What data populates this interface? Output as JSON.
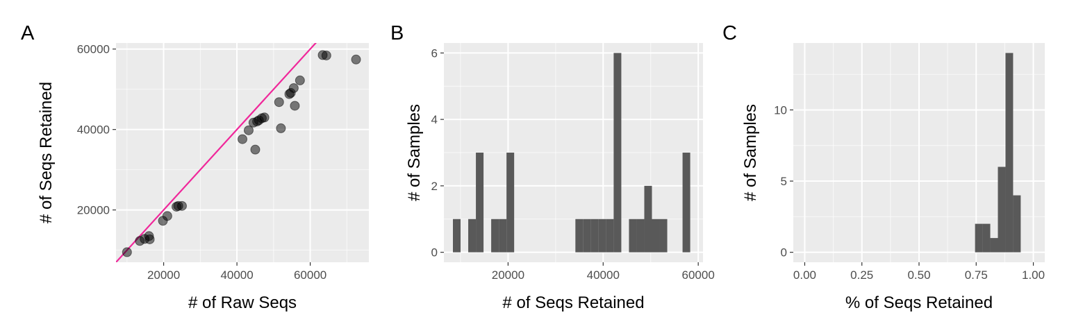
{
  "style": {
    "panel_bg": "#ebebeb",
    "grid_major": "#ffffff",
    "bar_fill": "#595959",
    "point_fill": "#000000",
    "line_color": "#f0279a",
    "tick_color": "#333333"
  },
  "chart_data": [
    {
      "type": "scatter",
      "tag": "A",
      "xlabel": "# of Raw Seqs",
      "ylabel": "# of Seqs Retained",
      "xlim": [
        7000,
        76000
      ],
      "ylim": [
        7000,
        61500
      ],
      "xticks": [
        20000,
        40000,
        60000
      ],
      "yticks": [
        20000,
        40000,
        60000
      ],
      "reference_line": {
        "slope": 1,
        "intercept": 0
      },
      "points": [
        {
          "x": 10000,
          "y": 9500
        },
        {
          "x": 13500,
          "y": 12300
        },
        {
          "x": 14800,
          "y": 12800
        },
        {
          "x": 16000,
          "y": 13500
        },
        {
          "x": 16200,
          "y": 12700
        },
        {
          "x": 19800,
          "y": 17300
        },
        {
          "x": 21000,
          "y": 18500
        },
        {
          "x": 23500,
          "y": 20800
        },
        {
          "x": 24000,
          "y": 21000
        },
        {
          "x": 25000,
          "y": 21000
        },
        {
          "x": 41500,
          "y": 37600
        },
        {
          "x": 43200,
          "y": 39800
        },
        {
          "x": 44500,
          "y": 41700
        },
        {
          "x": 45000,
          "y": 35000
        },
        {
          "x": 45500,
          "y": 42000
        },
        {
          "x": 46000,
          "y": 42300
        },
        {
          "x": 46800,
          "y": 42800
        },
        {
          "x": 47500,
          "y": 43000
        },
        {
          "x": 51500,
          "y": 46800
        },
        {
          "x": 52000,
          "y": 40300
        },
        {
          "x": 54300,
          "y": 48800
        },
        {
          "x": 54700,
          "y": 49100
        },
        {
          "x": 55500,
          "y": 50300
        },
        {
          "x": 55800,
          "y": 45900
        },
        {
          "x": 57200,
          "y": 52200
        },
        {
          "x": 63400,
          "y": 58500
        },
        {
          "x": 64400,
          "y": 58400
        },
        {
          "x": 72500,
          "y": 57400
        }
      ]
    },
    {
      "type": "bar",
      "subtype": "histogram",
      "tag": "B",
      "xlabel": "# of Seqs Retained",
      "ylabel": "# of Samples",
      "xlim": [
        6500,
        61000
      ],
      "ylim": [
        -0.3,
        6.3
      ],
      "xticks": [
        20000,
        40000,
        60000
      ],
      "yticks": [
        0,
        2,
        4,
        6
      ],
      "bin_width": 1610,
      "bins": [
        {
          "start": 8400,
          "count": 1
        },
        {
          "start": 11620,
          "count": 1
        },
        {
          "start": 13230,
          "count": 3
        },
        {
          "start": 16450,
          "count": 1
        },
        {
          "start": 18060,
          "count": 1
        },
        {
          "start": 19670,
          "count": 3
        },
        {
          "start": 34160,
          "count": 1
        },
        {
          "start": 35770,
          "count": 1
        },
        {
          "start": 37380,
          "count": 1
        },
        {
          "start": 38990,
          "count": 1
        },
        {
          "start": 40600,
          "count": 1
        },
        {
          "start": 42210,
          "count": 6
        },
        {
          "start": 45430,
          "count": 1
        },
        {
          "start": 47040,
          "count": 1
        },
        {
          "start": 48650,
          "count": 2
        },
        {
          "start": 50260,
          "count": 1
        },
        {
          "start": 51870,
          "count": 1
        },
        {
          "start": 56700,
          "count": 3
        }
      ]
    },
    {
      "type": "bar",
      "subtype": "histogram",
      "tag": "C",
      "xlabel": "% of Seqs Retained",
      "ylabel": "# of Samples",
      "xlim": [
        -0.05,
        1.05
      ],
      "ylim": [
        -0.7,
        14.7
      ],
      "xticks": [
        "0.00",
        "0.25",
        "0.50",
        "0.75",
        "1.00"
      ],
      "xtick_values": [
        0,
        0.25,
        0.5,
        0.75,
        1.0
      ],
      "yticks": [
        0,
        5,
        10
      ],
      "bin_width": 0.0333,
      "bins": [
        {
          "start": 0.745,
          "count": 2
        },
        {
          "start": 0.7783,
          "count": 2
        },
        {
          "start": 0.8116,
          "count": 1
        },
        {
          "start": 0.8449,
          "count": 6
        },
        {
          "start": 0.8782,
          "count": 14
        },
        {
          "start": 0.9115,
          "count": 4
        }
      ]
    }
  ]
}
